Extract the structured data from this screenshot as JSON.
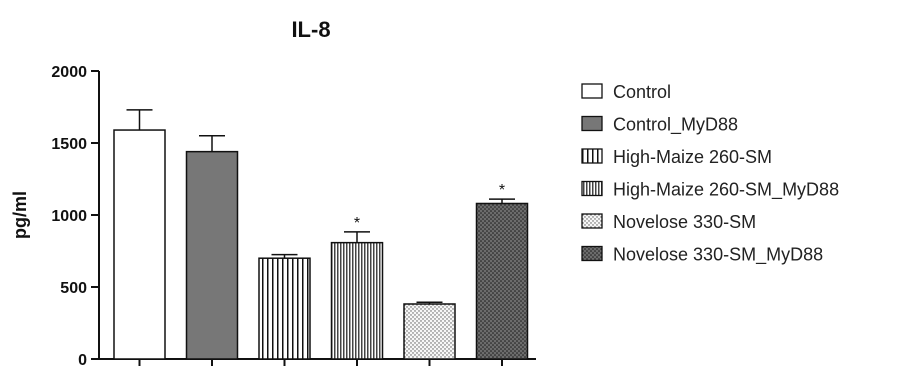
{
  "chart_data": {
    "type": "bar",
    "title": "IL-8",
    "xlabel": "",
    "ylabel": "pg/ml",
    "ylim": [
      0,
      2000
    ],
    "yticks": [
      0,
      500,
      1000,
      1500,
      2000
    ],
    "categories": [
      "Control",
      "Control_MyD88",
      "High-Maize 260-SM",
      "High-Maize 260-SM_MyD88",
      "Novelose 330-SM",
      "Novelose 330-SM_MyD88"
    ],
    "values": [
      1590,
      1440,
      700,
      808,
      382,
      1080
    ],
    "errors": [
      140,
      110,
      25,
      75,
      12,
      30
    ],
    "significance": [
      "",
      "",
      "",
      "*",
      "",
      "*"
    ],
    "fills": [
      "white",
      "solid-gray",
      "vertical-lines",
      "dense-vertical-lines",
      "light-dots",
      "dark-dots"
    ],
    "colors": {
      "solid_gray": "#777777",
      "stroke": "#111111"
    },
    "legend": {
      "position": "right",
      "entries": [
        "Control",
        "Control_MyD88",
        "High-Maize 260-SM",
        "High-Maize 260-SM_MyD88",
        "Novelose 330-SM",
        "Novelose 330-SM_MyD88"
      ]
    },
    "grid": false
  }
}
